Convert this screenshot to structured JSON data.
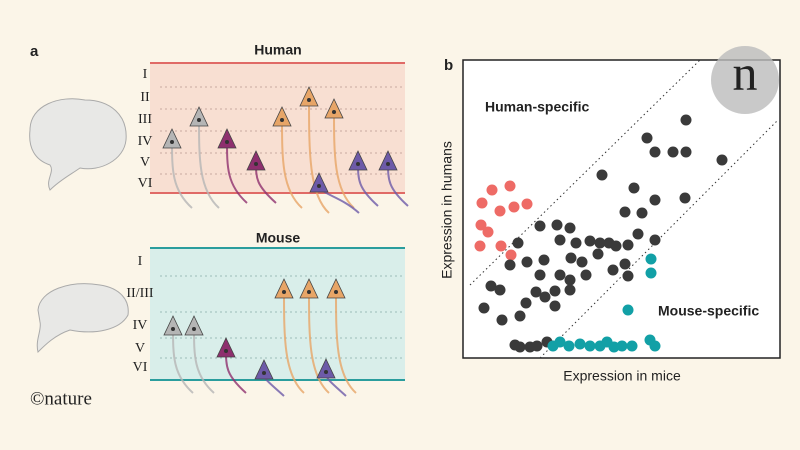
{
  "panel_a": {
    "label": "a",
    "human": {
      "title": "Human",
      "layers": [
        "I",
        "II",
        "III",
        "IV",
        "V",
        "VI"
      ]
    },
    "mouse": {
      "title": "Mouse",
      "layers": [
        "I",
        "II/III",
        "IV",
        "V",
        "VI"
      ]
    }
  },
  "panel_b": {
    "label": "b",
    "annotations": [
      "Human-specific",
      "Mouse-specific"
    ],
    "y_label": "Expression in humans",
    "x_label": "Expression in mice"
  },
  "credit": "©nature"
}
